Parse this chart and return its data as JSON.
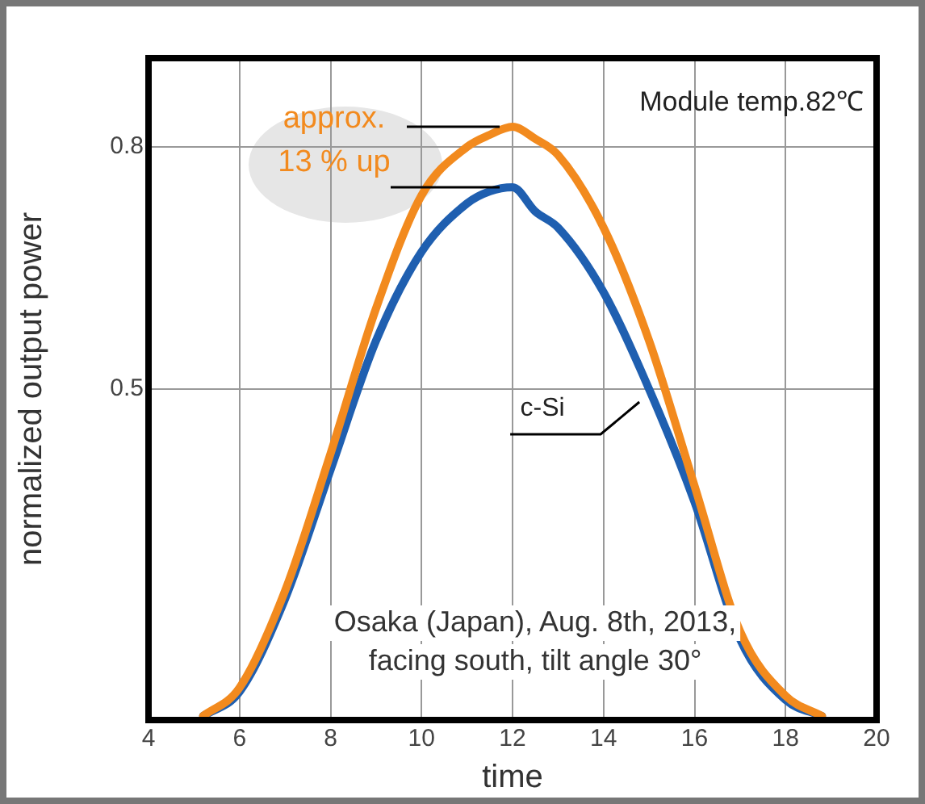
{
  "chart_data": {
    "type": "line",
    "xlabel": "time",
    "ylabel": "normalized output power",
    "x": [
      5.2,
      6,
      7,
      8,
      9,
      10,
      11,
      11.5,
      12,
      12.5,
      13,
      14,
      15,
      16,
      17,
      18,
      18.8
    ],
    "series": [
      {
        "color": "#f28a1e",
        "values": [
          0.095,
          0.13,
          0.25,
          0.42,
          0.6,
          0.74,
          0.8,
          0.815,
          0.825,
          0.81,
          0.79,
          0.7,
          0.56,
          0.38,
          0.2,
          0.12,
          0.095
        ]
      },
      {
        "name": "c-Si",
        "color": "#1f5fb0",
        "values": [
          0.095,
          0.125,
          0.24,
          0.4,
          0.56,
          0.67,
          0.73,
          0.745,
          0.75,
          0.72,
          0.7,
          0.62,
          0.5,
          0.36,
          0.19,
          0.115,
          0.095
        ]
      }
    ],
    "xlim": [
      4,
      20
    ],
    "xticks": [
      4,
      6,
      8,
      10,
      12,
      14,
      16,
      18,
      20
    ],
    "ylim": [
      0.09,
      0.91
    ],
    "yticks": [
      0.5,
      0.8
    ],
    "grid": true,
    "legend": false,
    "line_style": "solid",
    "marker": "none",
    "annotations": [
      {
        "text": "approx.",
        "x": 12,
        "y": 0.825
      },
      {
        "text": "13 % up",
        "x": 12,
        "y": 0.75
      },
      "Module temp.82℃",
      "Osaka (Japan), Aug. 8th, 2013,\nfacing south, tilt angle 30°"
    ]
  }
}
